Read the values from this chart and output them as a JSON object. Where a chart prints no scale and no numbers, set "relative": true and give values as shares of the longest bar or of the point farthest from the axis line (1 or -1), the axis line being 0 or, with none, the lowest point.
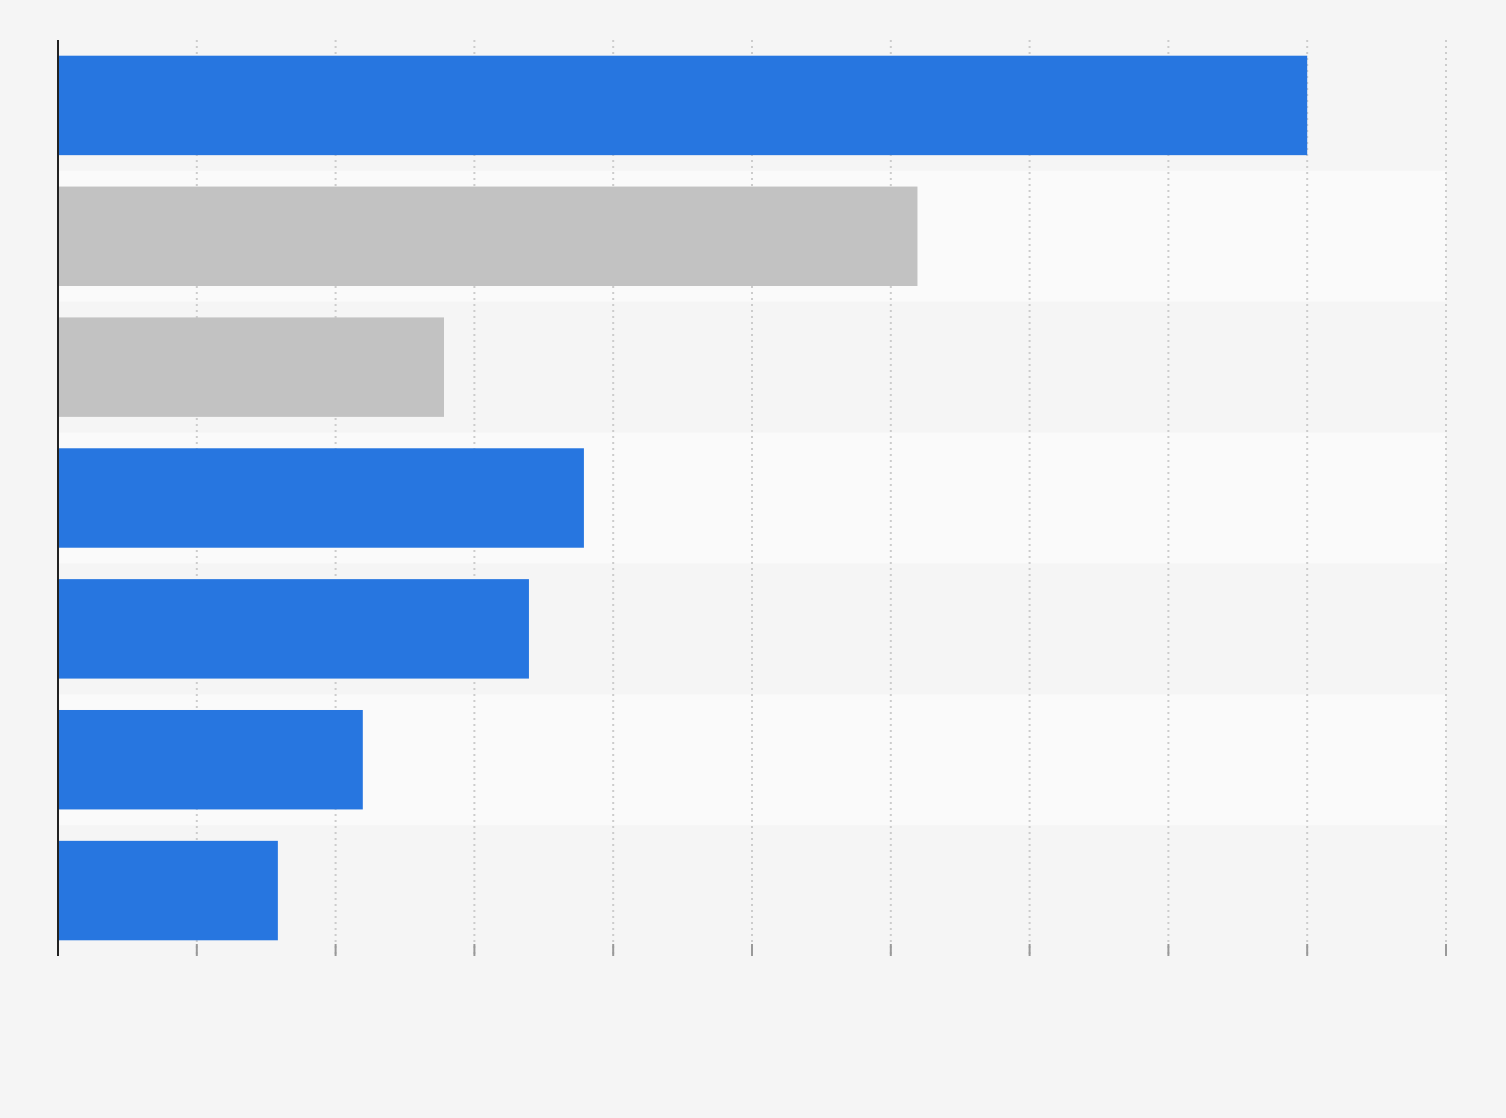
{
  "chart_data": {
    "type": "bar",
    "orientation": "horizontal",
    "relative": true,
    "categories": [
      null,
      null,
      null,
      null,
      null,
      null,
      null
    ],
    "values": [
      1,
      0.688,
      0.309,
      0.421,
      0.377,
      0.244,
      0.176
    ],
    "colors": [
      "#2776e0",
      "#c2c2c2",
      "#c2c2c2",
      "#2776e0",
      "#2776e0",
      "#2776e0",
      "#2776e0"
    ],
    "grid": "x"
  }
}
